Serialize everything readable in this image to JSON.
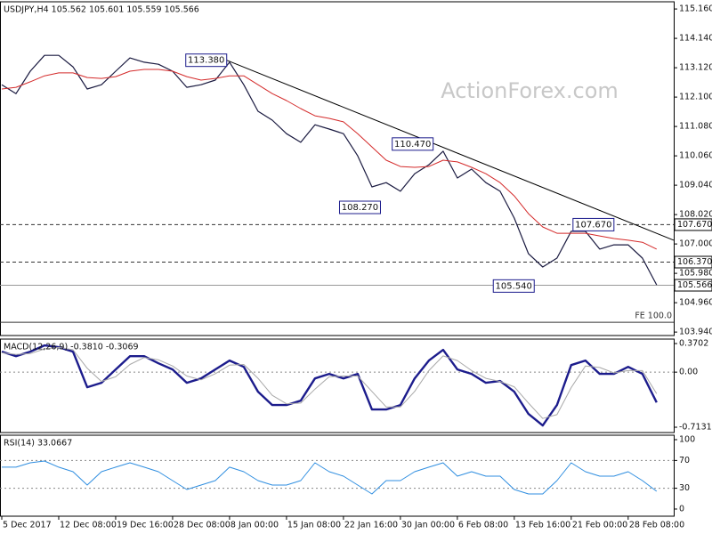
{
  "chart_data": [
    {
      "type": "line",
      "title": "USDJPY,H4  105.562 105.601 105.559 105.566",
      "watermark": "ActionForex.com",
      "xlim": [
        0,
        47.2
      ],
      "ylim": [
        103.82,
        115.41
      ],
      "yticks": [
        {
          "value": 115.16,
          "label": "115.160"
        },
        {
          "value": 114.14,
          "label": "114.140"
        },
        {
          "value": 113.12,
          "label": "113.120"
        },
        {
          "value": 112.1,
          "label": "112.100"
        },
        {
          "value": 111.08,
          "label": "111.080"
        },
        {
          "value": 110.06,
          "label": "110.060"
        },
        {
          "value": 109.04,
          "label": "109.040"
        },
        {
          "value": 108.02,
          "label": "108.020"
        },
        {
          "value": 107,
          "label": "107.000"
        },
        {
          "value": 105.98,
          "label": "105.980"
        },
        {
          "value": 104.96,
          "label": "104.960"
        },
        {
          "value": 103.94,
          "label": "103.940"
        }
      ],
      "grid": "none",
      "series": [
        {
          "color": "#1a1a40",
          "line_width": 1.2,
          "values": [
            112.53,
            112.22,
            113.0,
            113.55,
            113.55,
            113.15,
            112.38,
            112.53,
            113.0,
            113.46,
            113.31,
            113.24,
            113.0,
            112.44,
            112.53,
            112.69,
            113.31,
            112.53,
            111.61,
            111.3,
            110.83,
            110.53,
            111.14,
            110.99,
            110.83,
            110.06,
            108.98,
            109.13,
            108.83,
            109.44,
            109.75,
            110.22,
            109.29,
            109.6,
            109.13,
            108.83,
            107.9,
            106.66,
            106.2,
            106.51,
            107.44,
            107.44,
            106.82,
            106.97,
            106.97,
            106.51,
            105.58
          ]
        },
        {
          "color": "#d42a2a",
          "line_width": 1,
          "values": [
            112.38,
            112.44,
            112.63,
            112.84,
            112.94,
            112.94,
            112.78,
            112.75,
            112.81,
            113.0,
            113.06,
            113.06,
            113.0,
            112.81,
            112.69,
            112.75,
            112.84,
            112.84,
            112.53,
            112.22,
            111.98,
            111.7,
            111.45,
            111.36,
            111.24,
            110.83,
            110.37,
            109.91,
            109.69,
            109.66,
            109.69,
            109.91,
            109.85,
            109.66,
            109.44,
            109.13,
            108.67,
            108.05,
            107.59,
            107.37,
            107.37,
            107.37,
            107.28,
            107.19,
            107.13,
            107.06,
            106.82
          ]
        }
      ],
      "levels": [
        {
          "value": 107.67,
          "label": "107.670",
          "dashed": true
        },
        {
          "value": 106.37,
          "label": "106.370",
          "dashed": true
        },
        {
          "value": 105.566,
          "label": "105.566",
          "dashed": false
        }
      ],
      "annotations": [
        {
          "x": 15.8,
          "value": 113.38,
          "label": "113.380"
        },
        {
          "x": 30.3,
          "value": 110.47,
          "label": "110.470"
        },
        {
          "x": 26.6,
          "value": 108.27,
          "label": "108.270"
        },
        {
          "x": 37.4,
          "value": 105.54,
          "label": "105.540"
        },
        {
          "x": 43.0,
          "value": 107.67,
          "label": "107.670"
        }
      ],
      "trendline": {
        "x": [
          15.8,
          47.2
        ],
        "values": [
          113.38,
          107.13
        ]
      },
      "fe": {
        "value": 104.28,
        "text": "FE 100.0"
      }
    },
    {
      "type": "line",
      "title": "MACD(12,26,9) -0.3810 -0.3069",
      "xlim": [
        0,
        47.2
      ],
      "ylim": [
        -0.782,
        0.428
      ],
      "yticks": [
        {
          "value": 0.3702,
          "label": "0.3702"
        },
        {
          "value": 0,
          "label": "0.00"
        },
        {
          "value": -0.7131,
          "label": "-0.7131"
        }
      ],
      "grid": "inner",
      "series": [
        {
          "color": "#1c1c8c",
          "line_width": 2.4,
          "values": [
            0.265,
            0.207,
            0.265,
            0.346,
            0.323,
            0.265,
            -0.196,
            -0.138,
            0.035,
            0.207,
            0.207,
            0.115,
            0.035,
            -0.138,
            -0.081,
            0.035,
            0.15,
            0.069,
            -0.253,
            -0.426,
            -0.426,
            -0.369,
            -0.081,
            -0.023,
            -0.081,
            -0.023,
            -0.484,
            -0.484,
            -0.426,
            -0.081,
            0.15,
            0.288,
            0.035,
            -0.023,
            -0.138,
            -0.115,
            -0.253,
            -0.541,
            -0.691,
            -0.426,
            0.092,
            0.15,
            -0.023,
            -0.023,
            0.069,
            -0.023,
            -0.392
          ]
        },
        {
          "color": "#a8a8a8",
          "line_width": 1,
          "values": [
            0.25,
            0.23,
            0.24,
            0.3,
            0.32,
            0.29,
            0.05,
            -0.12,
            -0.06,
            0.1,
            0.19,
            0.16,
            0.08,
            -0.05,
            -0.1,
            -0.02,
            0.09,
            0.1,
            -0.08,
            -0.3,
            -0.41,
            -0.4,
            -0.22,
            -0.06,
            -0.05,
            -0.05,
            -0.25,
            -0.45,
            -0.45,
            -0.25,
            0.02,
            0.21,
            0.15,
            0.02,
            -0.08,
            -0.12,
            -0.19,
            -0.4,
            -0.6,
            -0.55,
            -0.2,
            0.08,
            0.06,
            -0.01,
            0.02,
            0.02,
            -0.28
          ]
        }
      ]
    },
    {
      "type": "line",
      "title": "RSI(14) 33.0667",
      "xlim": [
        0,
        47.2
      ],
      "ylim": [
        -10.3,
        106.4
      ],
      "yticks": [
        100,
        70,
        30,
        0
      ],
      "grid": "inner",
      "xticks": [
        {
          "value": 0,
          "label": "5 Dec 2017"
        },
        {
          "value": 4,
          "label": "12 Dec 08:00"
        },
        {
          "value": 8,
          "label": "19 Dec 16:00"
        },
        {
          "value": 12,
          "label": "28 Dec 08:00"
        },
        {
          "value": 16,
          "label": "8 Jan 00:00"
        },
        {
          "value": 20,
          "label": "15 Jan 08:00"
        },
        {
          "value": 24,
          "label": "22 Jan 16:00"
        },
        {
          "value": 28,
          "label": "30 Jan 00:00"
        },
        {
          "value": 32,
          "label": "6 Feb 08:00"
        },
        {
          "value": 36,
          "label": "13 Feb 16:00"
        },
        {
          "value": 40,
          "label": "21 Feb 00:00"
        },
        {
          "value": 44,
          "label": "28 Feb 08:00"
        }
      ],
      "series": [
        {
          "color": "#2f8ee0",
          "line_width": 1,
          "values": [
            60.3,
            60.3,
            66.7,
            69.2,
            60.3,
            53.8,
            34.6,
            53.8,
            60.3,
            66.7,
            60.3,
            53.8,
            41.0,
            28.2,
            34.6,
            41.0,
            60.3,
            53.8,
            41.0,
            34.6,
            34.6,
            41.0,
            66.7,
            53.8,
            47.4,
            34.6,
            21.8,
            41.0,
            41.0,
            53.8,
            60.3,
            66.7,
            47.4,
            53.8,
            47.4,
            47.4,
            28.2,
            21.8,
            21.8,
            41.0,
            66.7,
            53.8,
            47.4,
            47.4,
            53.8,
            41.0,
            25.6
          ]
        }
      ]
    }
  ]
}
